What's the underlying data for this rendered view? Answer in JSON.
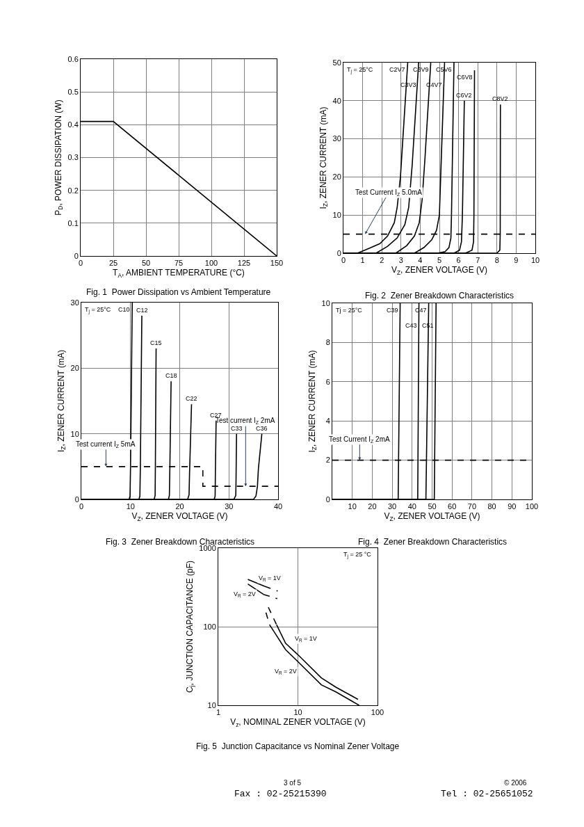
{
  "chart_data": [
    {
      "type": "line",
      "title": "Fig. 1  Power Dissipation vs Ambient Temperature",
      "xlabel": "T$_{A}$, AMBIENT TEMPERATURE (°C)",
      "ylabel": "P$_{D}$, POWER DISSIPATION (W)",
      "xlim": [
        0,
        150
      ],
      "xticks": [
        0,
        25,
        50,
        75,
        100,
        125,
        150
      ],
      "ylim": [
        0,
        0.6
      ],
      "yticks": [
        0,
        0.1,
        0.2,
        0.3,
        0.4,
        0.5,
        0.6
      ],
      "grid": true,
      "series": [
        {
          "color": "#000000",
          "x": [
            0,
            25,
            150
          ],
          "values": [
            0.41,
            0.41,
            0
          ]
        }
      ]
    },
    {
      "type": "line",
      "title": "Fig. 2  Zener Breakdown Characteristics",
      "xlabel": "V$_{Z}$, ZENER VOLTAGE (V)",
      "ylabel": "I$_{Z}$, ZENER CURRENT (mA)",
      "xlim": [
        0,
        10
      ],
      "xticks": [
        0,
        1,
        2,
        3,
        4,
        5,
        6,
        7,
        8,
        9,
        10
      ],
      "ylim": [
        0,
        50
      ],
      "yticks": [
        0,
        10,
        20,
        30,
        40,
        50
      ],
      "grid": true,
      "series": [
        {
          "name": "C2V7",
          "color": "#000000",
          "x": [
            0,
            0.73,
            1.3,
            1.9,
            2.3,
            2.65,
            2.8,
            2.97,
            3.35
          ],
          "values": [
            0,
            0,
            1.2,
            2.5,
            4.5,
            8,
            12,
            20,
            50
          ]
        },
        {
          "name": "C3V3",
          "color": "#000000",
          "x": [
            0,
            1.7,
            2.3,
            2.8,
            3.2,
            3.4,
            3.58,
            3.92
          ],
          "values": [
            0,
            0,
            1.8,
            4,
            7.5,
            12,
            23,
            50
          ]
        },
        {
          "name": "C3V9",
          "color": "#000000",
          "x": [
            0,
            2.73,
            3.3,
            3.7,
            3.95,
            4.1,
            4.25,
            4.55
          ],
          "values": [
            0,
            0,
            2,
            4.5,
            8,
            14,
            25,
            50
          ]
        },
        {
          "name": "C4V7",
          "color": "#000000",
          "x": [
            0,
            3.7,
            4.2,
            4.6,
            4.85,
            5.0,
            5.27
          ],
          "values": [
            0,
            0,
            1.5,
            3.5,
            6,
            10,
            50
          ]
        },
        {
          "name": "C5V6",
          "color": "#000000",
          "x": [
            0,
            4.9,
            5.3,
            5.5,
            5.6,
            5.63,
            5.76
          ],
          "values": [
            0,
            0,
            0.4,
            1.5,
            4,
            10,
            50
          ]
        },
        {
          "name": "C6V2",
          "color": "#000000",
          "x": [
            0,
            5.76,
            6.05,
            6.15,
            6.2,
            6.3
          ],
          "values": [
            0,
            0,
            0.8,
            3,
            10,
            40
          ]
        },
        {
          "name": "C6V8",
          "color": "#000000",
          "x": [
            0,
            6.36,
            6.7,
            6.78,
            6.8,
            6.83
          ],
          "values": [
            0,
            0,
            0.8,
            3,
            10,
            48
          ]
        },
        {
          "name": "C8V2",
          "color": "#000000",
          "x": [
            0,
            8.0,
            8.15,
            8.17,
            8.18
          ],
          "values": [
            0,
            0,
            0.8,
            5,
            39
          ]
        }
      ],
      "ref_lines": [
        {
          "axis": "y",
          "value": 5,
          "color": "#000000",
          "line_style": "dashed"
        }
      ],
      "annotations": [
        "T$_{j}$ = 25°C",
        {
          "text": "Test Current I$_{Z}$ 5.0mA",
          "x": 1.13,
          "y": 5
        }
      ]
    },
    {
      "type": "line",
      "title": "Fig. 3  Zener Breakdown Characteristics",
      "xlabel": "V$_{Z}$, ZENER VOLTAGE (V)",
      "ylabel": "I$_{Z}$, ZENER CURRENT (mA)",
      "xlim": [
        0,
        40
      ],
      "xticks": [
        0,
        10,
        20,
        30,
        40
      ],
      "ylim": [
        0,
        30
      ],
      "yticks": [
        0,
        10,
        20,
        30
      ],
      "grid": true,
      "series": [
        {
          "name": "C10",
          "color": "#000000",
          "x": [
            0,
            9.7,
            9.9,
            10.0,
            10.35
          ],
          "values": [
            0,
            0,
            0.5,
            5,
            30
          ]
        },
        {
          "name": "C12",
          "color": "#000000",
          "x": [
            0,
            11.7,
            11.9,
            12.0,
            12.3
          ],
          "values": [
            0,
            0,
            0.5,
            5,
            28
          ]
        },
        {
          "name": "C15",
          "color": "#000000",
          "x": [
            0,
            14.8,
            15.0,
            15.05,
            15.2
          ],
          "values": [
            0,
            0,
            0.6,
            5,
            23
          ]
        },
        {
          "name": "C18",
          "color": "#000000",
          "x": [
            0,
            17.7,
            17.9,
            18.0,
            18.25
          ],
          "values": [
            0,
            0,
            0.6,
            5,
            18
          ]
        },
        {
          "name": "C22",
          "color": "#000000",
          "x": [
            0,
            21.6,
            21.9,
            22.0,
            22.4
          ],
          "values": [
            0,
            0,
            0.7,
            4,
            14.5
          ]
        },
        {
          "name": "C27",
          "color": "#000000",
          "x": [
            0,
            27.0,
            27.2,
            27.25,
            27.4
          ],
          "values": [
            0,
            0,
            0.5,
            4,
            12
          ]
        },
        {
          "name": "C33",
          "color": "#000000",
          "x": [
            0,
            31.0,
            31.4,
            31.45,
            31.55
          ],
          "values": [
            0,
            0,
            0.6,
            3,
            10
          ]
        },
        {
          "name": "C36",
          "color": "#000000",
          "x": [
            0,
            35.0,
            35.5,
            35.8,
            36.0,
            36.7
          ],
          "values": [
            0,
            0,
            0.5,
            2,
            4.7,
            10
          ]
        },
        {
          "color": "#000000",
          "line_style": "dashed",
          "x": [
            0,
            24.7,
            24.7,
            40
          ],
          "values": [
            5,
            5,
            2,
            2
          ]
        }
      ],
      "annotations": [
        "T$_{j}$ = 25°C",
        {
          "text": "Test current I$_{Z}$ 5mA",
          "x": 5,
          "y": 5
        },
        {
          "text": "Test current I$_{Z}$ 2mA",
          "x": 33.4,
          "y": 2
        }
      ]
    },
    {
      "type": "line",
      "title": "Fig. 4  Zener Breakdown Characteristics",
      "xlabel": "V$_{Z}$, ZENER VOLTAGE (V)",
      "ylabel": "I$_{Z}$, ZENER CURRENT (mA)",
      "xlim": [
        0,
        100
      ],
      "xticks": [
        10,
        20,
        30,
        40,
        50,
        60,
        70,
        80,
        90,
        100
      ],
      "ylim": [
        0,
        10
      ],
      "yticks": [
        0,
        2,
        4,
        6,
        8,
        10
      ],
      "grid": true,
      "series": [
        {
          "name": "C39",
          "color": "#000000",
          "x": [
            0,
            33.0,
            34.0
          ],
          "values": [
            0,
            0,
            10
          ]
        },
        {
          "name": "C43",
          "color": "#000000",
          "x": [
            0,
            42.8,
            43.4
          ],
          "values": [
            0,
            0,
            10
          ]
        },
        {
          "name": "C47",
          "color": "#000000",
          "x": [
            0,
            46.9,
            48.3
          ],
          "values": [
            0,
            0,
            10
          ]
        },
        {
          "name": "C51",
          "color": "#000000",
          "x": [
            0,
            51.1,
            52.0
          ],
          "values": [
            0,
            0,
            10
          ]
        }
      ],
      "ref_lines": [
        {
          "axis": "y",
          "value": 2,
          "color": "#000000",
          "line_style": "dashed"
        }
      ],
      "annotations": [
        "Tj = 25°C",
        {
          "text": "Test Current I$_{Z}$ 2mA",
          "x": 13.7,
          "y": 2
        }
      ]
    },
    {
      "type": "line",
      "title": "Fig. 5  Junction Capacitance vs Nominal Zener Voltage",
      "xlabel": "V$_{z}$, NOMINAL ZENER VOLTAGE (V)",
      "ylabel": "C$_{j}$, JUNCTION CAPACITANCE (pF)",
      "log": "xy",
      "xlim": [
        1,
        100
      ],
      "xticks": [
        1,
        10,
        100
      ],
      "ylim": [
        10,
        1000
      ],
      "yticks": [
        10,
        100,
        1000
      ],
      "grid": true,
      "series": [
        {
          "color": "#000000",
          "x": [
            2.35,
            3.83
          ],
          "values": [
            400,
            326
          ]
        },
        {
          "color": "#000000",
          "line_style": "dashed",
          "x": [
            3.83,
            5.58
          ],
          "values": [
            326,
            284
          ]
        },
        {
          "color": "#000000",
          "x": [
            2.35,
            3.71
          ],
          "values": [
            349,
            257
          ]
        },
        {
          "color": "#000000",
          "line_style": "dashed",
          "x": [
            3.71,
            5.5
          ],
          "values": [
            257,
            227
          ]
        },
        {
          "color": "#000000",
          "line_style": "dashed",
          "x": [
            4.25,
            5.39
          ],
          "values": [
            177,
            106
          ]
        },
        {
          "color": "#000000",
          "x": [
            5.39,
            7,
            10,
            19.7,
            30,
            56.8
          ],
          "values": [
            106,
            61.6,
            44,
            22.3,
            17,
            11.9
          ]
        },
        {
          "color": "#000000",
          "line_style": "dashed",
          "x": [
            3.97,
            4.4
          ],
          "values": [
            151,
            106
          ]
        },
        {
          "color": "#000000",
          "x": [
            4.4,
            7,
            10,
            19.7,
            30,
            58.7
          ],
          "values": [
            106,
            51,
            35.9,
            18.2,
            14.8,
            10
          ]
        }
      ],
      "annotations": [
        "T$_{j}$ = 25 °C",
        {
          "text": "V$_{R}$ = 1V",
          "x": 4.4,
          "y": 414
        },
        {
          "text": "V$_{R}$ = 2V",
          "x": 2.15,
          "y": 257
        },
        {
          "text": "V$_{R}$ = 1V",
          "x": 12.7,
          "y": 70
        },
        {
          "text": "V$_{R}$ = 2V",
          "x": 7.1,
          "y": 26.8
        },
        "3 of 5",
        "© 2006",
        "Fax : 02-25215390",
        "Tel : 02-25651052"
      ]
    }
  ]
}
